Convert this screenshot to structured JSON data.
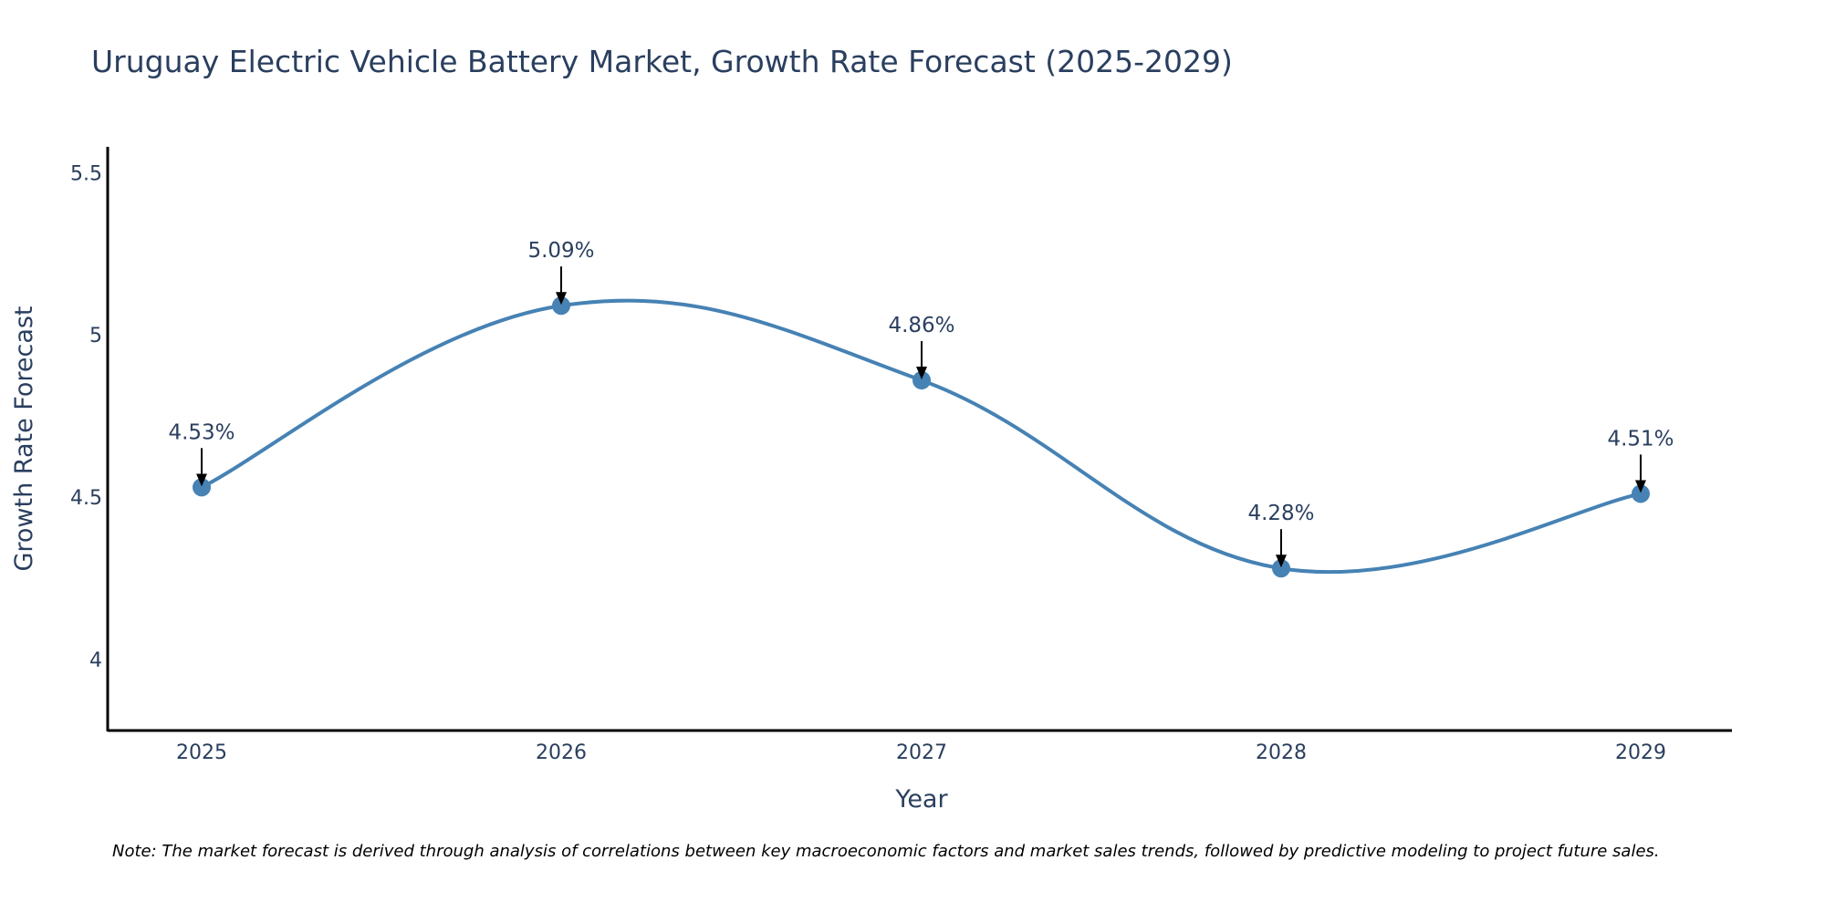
{
  "colors": {
    "line": "#4682b4",
    "marker": "#4682b4",
    "axis": "#000000",
    "text": "#2a3f5f",
    "arrow": "#000000"
  },
  "chart_data": {
    "type": "line",
    "title": "Uruguay Electric Vehicle Battery Market, Growth Rate Forecast (2025-2029)",
    "xlabel": "Year",
    "ylabel": "Growth Rate Forecast",
    "categories": [
      "2025",
      "2026",
      "2027",
      "2028",
      "2029"
    ],
    "series": [
      {
        "name": "Growth Rate Forecast",
        "values": [
          4.53,
          5.09,
          4.86,
          4.28,
          4.51
        ],
        "labels": [
          "4.53%",
          "5.09%",
          "4.86%",
          "4.28%",
          "4.51%"
        ],
        "line_shape": "spline"
      }
    ],
    "yticks": [
      4,
      4.5,
      5,
      5.5
    ],
    "ytick_labels": [
      "4",
      "4.5",
      "5",
      "5.5"
    ],
    "ylim": [
      3.78,
      5.58
    ],
    "grid": false,
    "legend": "none",
    "note": "Note: The market forecast is derived through analysis of correlations between key macroeconomic factors and market sales trends, followed by predictive modeling to project future sales."
  }
}
